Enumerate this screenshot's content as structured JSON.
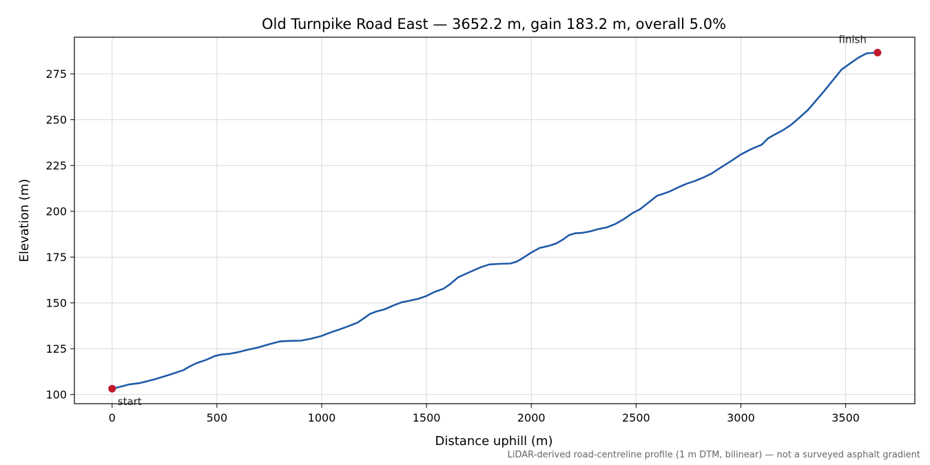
{
  "chart_data": {
    "type": "line",
    "title": "Old Turnpike Road East — 3652.2 m, gain 183.2 m, overall 5.0%",
    "xlabel": "Distance uphill (m)",
    "ylabel": "Elevation (m)",
    "xlim": [
      -180,
      3830
    ],
    "ylim": [
      95,
      295
    ],
    "xticks": [
      0,
      500,
      1000,
      1500,
      2000,
      2500,
      3000,
      3500
    ],
    "yticks": [
      100,
      125,
      150,
      175,
      200,
      225,
      250,
      275
    ],
    "grid": true,
    "series": [
      {
        "color": "#1f5aa8",
        "x": [
          0,
          30,
          80,
          130,
          200,
          280,
          340,
          370,
          400,
          450,
          490,
          520,
          560,
          600,
          650,
          700,
          750,
          800,
          850,
          900,
          950,
          1000,
          1050,
          1080,
          1120,
          1170,
          1200,
          1230,
          1260,
          1300,
          1340,
          1380,
          1420,
          1460,
          1500,
          1540,
          1580,
          1610,
          1650,
          1680,
          1720,
          1760,
          1800,
          1850,
          1900,
          1930,
          1960,
          2000,
          2040,
          2080,
          2120,
          2150,
          2180,
          2210,
          2240,
          2280,
          2320,
          2360,
          2400,
          2440,
          2480,
          2520,
          2560,
          2600,
          2630,
          2660,
          2700,
          2740,
          2780,
          2820,
          2860,
          2900,
          2950,
          3000,
          3050,
          3100,
          3130,
          3160,
          3200,
          3240,
          3280,
          3320,
          3360,
          3400,
          3440,
          3480,
          3520,
          3560,
          3600,
          3652
        ],
        "y": [
          103.2,
          104,
          105.5,
          106.2,
          108.2,
          111,
          113.3,
          115.3,
          117,
          119,
          121,
          121.8,
          122.2,
          123.1,
          124.5,
          125.8,
          127.5,
          129,
          129.3,
          129.4,
          130.5,
          132,
          134.2,
          135.3,
          137,
          139.2,
          141.5,
          144,
          145.3,
          146.5,
          148.5,
          150.3,
          151.2,
          152.2,
          153.8,
          156.1,
          157.7,
          160,
          163.9,
          165.5,
          167.5,
          169.5,
          171,
          171.3,
          171.5,
          172.5,
          174.5,
          177.5,
          180,
          181,
          182.5,
          184.5,
          187,
          188,
          188.2,
          189,
          190.3,
          191.2,
          193,
          195.6,
          198.8,
          201.2,
          204.8,
          208.5,
          209.6,
          210.8,
          213,
          215,
          216.5,
          218.4,
          220.6,
          223.6,
          227.2,
          231,
          234,
          236.4,
          239.8,
          241.8,
          244.2,
          247.2,
          251.2,
          255.3,
          260.6,
          266,
          271.6,
          277.3,
          280.6,
          283.8,
          286.2,
          286.6
        ]
      }
    ],
    "markers": [
      {
        "x": 0,
        "y": 103.2,
        "color": "#c0182a"
      },
      {
        "x": 3652,
        "y": 286.6,
        "color": "#c0182a"
      }
    ],
    "annotations": [
      {
        "text": "start",
        "x": 0,
        "y": 103.2
      },
      {
        "text": "finish",
        "x": 3652,
        "y": 286.6
      }
    ],
    "footnote": "LiDAR-derived road-centreline profile (1 m DTM, bilinear) — not a surveyed asphalt gradient"
  }
}
